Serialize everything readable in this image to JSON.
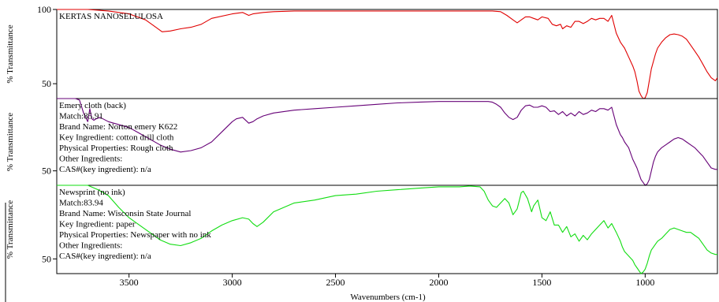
{
  "chart_data": {
    "type": "line",
    "xlabel": "Wavenumbers (cm-1)",
    "xlim": [
      3850,
      650
    ],
    "x_ticks": [
      "3500",
      "3000",
      "2500",
      "2000",
      "1500",
      "1000"
    ],
    "x_tick_values": [
      3500,
      3000,
      2500,
      2000,
      1500,
      1000
    ],
    "panels": [
      {
        "ylabel": "% Transmittance",
        "ylim": [
          40,
          100
        ],
        "y_ticks": [
          "100",
          "50"
        ],
        "y_tick_values": [
          100,
          50
        ],
        "color": "#e00000",
        "info": [
          "KERTAS NANOSELULOSA"
        ],
        "series": [
          {
            "name": "KERTAS NANOSELULOSA",
            "x": [
              3850,
              3700,
              3600,
              3500,
              3420,
              3380,
              3340,
              3300,
              3250,
              3200,
              3150,
              3100,
              3000,
              2950,
              2920,
              2900,
              2850,
              2800,
              2700,
              2500,
              2300,
              2100,
              1900,
              1800,
              1740,
              1700,
              1670,
              1640,
              1620,
              1600,
              1580,
              1560,
              1540,
              1520,
              1500,
              1470,
              1450,
              1430,
              1410,
              1400,
              1380,
              1360,
              1340,
              1320,
              1300,
              1280,
              1260,
              1240,
              1220,
              1200,
              1180,
              1162,
              1140,
              1120,
              1110,
              1100,
              1080,
              1060,
              1050,
              1040,
              1030,
              1020,
              1010,
              1000,
              990,
              980,
              970,
              960,
              950,
              940,
              920,
              900,
              880,
              860,
              840,
              820,
              800,
              780,
              760,
              740,
              720,
              700,
              680,
              660,
              650
            ],
            "y": [
              100,
              100,
              99,
              97,
              93,
              89,
              85,
              85.5,
              87,
              88,
              90,
              94,
              97,
              98,
              96,
              97,
              98,
              98.5,
              99,
              99,
              99,
              99,
              99,
              99,
              99,
              98.5,
              96,
              93,
              91,
              93,
              95,
              95,
              94,
              93,
              95,
              94,
              90,
              89,
              90,
              87,
              89,
              88,
              92,
              92,
              90.5,
              92,
              94,
              93,
              94,
              94,
              92,
              96,
              84,
              78,
              76,
              74,
              68,
              62,
              58,
              52,
              45,
              42,
              40,
              40.5,
              44,
              52,
              60,
              65,
              70,
              74,
              78,
              81,
              83,
              83.5,
              83,
              82,
              80,
              76,
              72,
              68,
              63,
              58,
              54,
              52,
              54
            ]
          }
        ]
      },
      {
        "ylabel": "% Transmittance",
        "ylim": [
          40,
          100
        ],
        "y_ticks": [
          "50"
        ],
        "y_tick_values": [
          50
        ],
        "color": "#660077",
        "info": [
          "Emery cloth (back)",
          "Match:85.91",
          "Brand Name:  Norton emery K622",
          "Key Ingredient:  cotton drill cloth",
          "Physical Properties:  Rough cloth",
          "Other Ingredients:",
          "CAS#(key ingredient):  n/a"
        ],
        "series": [
          {
            "name": "Emery cloth (back)",
            "x": [
              3850,
              3800,
              3760,
              3740,
              3720,
              3700,
              3690,
              3680,
              3670,
              3660,
              3640,
              3600,
              3500,
              3450,
              3400,
              3350,
              3300,
              3250,
              3200,
              3150,
              3100,
              3050,
              3000,
              2980,
              2950,
              2920,
              2900,
              2880,
              2850,
              2800,
              2700,
              2600,
              2500,
              2400,
              2300,
              2200,
              2100,
              2000,
              1900,
              1800,
              1760,
              1740,
              1720,
              1700,
              1680,
              1660,
              1640,
              1620,
              1600,
              1580,
              1560,
              1540,
              1520,
              1500,
              1480,
              1460,
              1440,
              1420,
              1400,
              1380,
              1360,
              1340,
              1320,
              1300,
              1280,
              1260,
              1240,
              1220,
              1200,
              1180,
              1162,
              1140,
              1120,
              1110,
              1100,
              1080,
              1060,
              1050,
              1040,
              1030,
              1020,
              1010,
              1000,
              990,
              980,
              970,
              960,
              950,
              940,
              920,
              900,
              880,
              860,
              840,
              820,
              800,
              780,
              760,
              740,
              720,
              700,
              680,
              660,
              650
            ],
            "y": [
              100,
              100,
              100,
              99,
              90,
              84,
              93,
              86,
              85,
              86,
              87,
              84,
              80,
              76,
              72,
              68,
              65,
              63,
              64,
              66,
              70,
              77,
              84,
              86,
              87,
              83,
              84,
              86,
              88,
              90,
              92,
              93,
              94,
              95,
              96,
              97,
              97.5,
              98,
              98,
              98,
              98,
              97.5,
              96,
              94,
              90,
              87,
              85.5,
              87,
              92,
              95,
              95.5,
              94,
              94,
              95,
              94,
              91,
              91.5,
              89,
              91,
              88,
              90,
              88,
              91,
              89,
              90,
              92,
              91,
              93,
              93,
              92,
              94,
              82,
              75,
              73,
              70,
              66,
              58,
              55,
              52,
              48,
              44,
              42,
              40,
              41,
              44,
              50,
              56,
              60,
              63,
              66,
              68,
              70,
              72,
              73,
              72,
              70,
              68,
              66,
              63,
              60,
              56,
              52,
              51,
              51
            ]
          }
        ]
      },
      {
        "ylabel": "% Transmittance",
        "ylim": [
          40,
          100
        ],
        "y_ticks": [
          "50"
        ],
        "y_tick_values": [
          50
        ],
        "color": "#11dd11",
        "info": [
          "Newsprint (no ink)",
          "Match:83.94",
          "Brand Name:  Wisconsin State Journal",
          "Key Ingredient:  paper",
          "Physical Properties:  Newspaper with no ink",
          "Other Ingredients:",
          "CAS#(key ingredient):  n/a"
        ],
        "series": [
          {
            "name": "Newsprint (no ink)",
            "x": [
              3850,
              3800,
              3750,
              3700,
              3650,
              3600,
              3550,
              3500,
              3450,
              3400,
              3350,
              3300,
              3250,
              3200,
              3150,
              3100,
              3050,
              3000,
              2950,
              2920,
              2900,
              2880,
              2850,
              2800,
              2700,
              2600,
              2500,
              2400,
              2300,
              2200,
              2100,
              2050,
              2000,
              1950,
              1900,
              1850,
              1800,
              1780,
              1760,
              1740,
              1720,
              1700,
              1680,
              1660,
              1640,
              1620,
              1600,
              1590,
              1570,
              1550,
              1540,
              1520,
              1500,
              1480,
              1460,
              1440,
              1420,
              1400,
              1380,
              1360,
              1340,
              1320,
              1300,
              1280,
              1260,
              1240,
              1220,
              1200,
              1180,
              1162,
              1140,
              1120,
              1110,
              1100,
              1080,
              1060,
              1050,
              1040,
              1030,
              1020,
              1010,
              1000,
              990,
              980,
              970,
              960,
              950,
              940,
              920,
              900,
              880,
              860,
              840,
              820,
              800,
              780,
              760,
              740,
              720,
              700,
              680,
              660,
              650
            ],
            "y": [
              100,
              100,
              100,
              100,
              97,
              93,
              85,
              78,
              73,
              68,
              63,
              60,
              59,
              61,
              64,
              69,
              73,
              76,
              78,
              77,
              74,
              72,
              75,
              82,
              88,
              90,
              93,
              94,
              96,
              97,
              98,
              98.5,
              99,
              99,
              99,
              99.5,
              99,
              96,
              90,
              86,
              85,
              88,
              91,
              88,
              80,
              84,
              95,
              96,
              91,
              82,
              86,
              90,
              78,
              76,
              82,
              73,
              73,
              68,
              72,
              65,
              67,
              62,
              66,
              63,
              67,
              70,
              73,
              76,
              71,
              74,
              68,
              62,
              58,
              55,
              52,
              49,
              46,
              44,
              42,
              40,
              41,
              43,
              47,
              52,
              56,
              58,
              60,
              62,
              64,
              67,
              70,
              71,
              70,
              69,
              68,
              68,
              66,
              64,
              60,
              56,
              54,
              53,
              53
            ]
          }
        ]
      }
    ]
  }
}
